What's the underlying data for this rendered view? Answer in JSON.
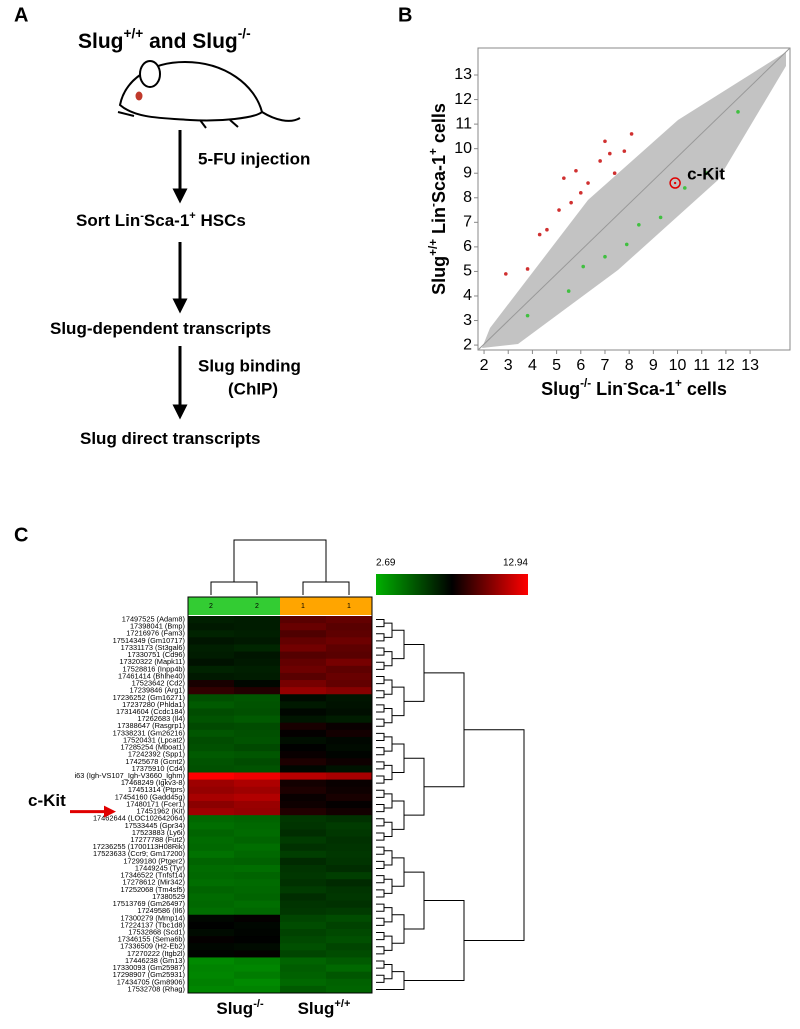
{
  "panels": {
    "a": "A",
    "b": "B",
    "c": "C"
  },
  "flow": {
    "title": [
      "Slug",
      "+/+",
      " and Slug",
      "-/-"
    ],
    "arrows": [
      [
        "5-FU injection"
      ],
      [
        "Slug binding",
        "(ChIP)"
      ]
    ],
    "steps": [
      [
        "Sort Lin",
        "-",
        "Sca-1",
        "+",
        " HSCs"
      ],
      [
        "Slug-dependent transcripts"
      ],
      [
        "Slug direct transcripts"
      ]
    ]
  },
  "chart_data": [
    {
      "type": "scatter",
      "x_label": [
        "Slug",
        "-/-",
        " Lin",
        "-",
        "Sca-1",
        "+",
        " cells"
      ],
      "y_label": [
        "Slug",
        "+/+",
        " Lin",
        "-",
        "Sca-1",
        "+",
        " cells"
      ],
      "xlim": [
        1.75,
        14.65
      ],
      "ylim": [
        1.8,
        14.1
      ],
      "xticks": [
        2,
        3,
        4,
        5,
        6,
        7,
        8,
        9,
        10,
        11,
        12,
        13
      ],
      "yticks": [
        2,
        3,
        4,
        5,
        6,
        7,
        8,
        9,
        10,
        11,
        12,
        13
      ],
      "cloud_color": "#b8b8b8",
      "series": [
        {
          "color": "#d03030",
          "x": [
            2.9,
            3.8,
            4.3,
            4.6,
            5.1,
            5.3,
            5.6,
            5.8,
            6.0,
            6.3,
            6.8,
            7.0,
            7.2,
            7.4,
            7.8,
            8.1
          ],
          "values": [
            4.9,
            5.1,
            6.5,
            6.7,
            7.5,
            8.8,
            7.8,
            9.1,
            8.2,
            8.6,
            9.5,
            10.3,
            9.8,
            9.0,
            9.9,
            10.6
          ]
        },
        {
          "color": "#40c040",
          "x": [
            3.8,
            5.5,
            6.1,
            7.0,
            7.9,
            8.4,
            9.3,
            10.3,
            11.2,
            12.5
          ],
          "values": [
            3.2,
            4.2,
            5.2,
            5.6,
            6.1,
            6.9,
            7.2,
            8.4,
            9.0,
            11.5
          ]
        }
      ],
      "highlight": {
        "label": "c-Kit",
        "x": 9.9,
        "y": 8.6,
        "color": "#e00000"
      }
    },
    {
      "type": "heatmap",
      "categories": [
        "2",
        "2",
        "1",
        "1"
      ],
      "category_colors": [
        "#33cc33",
        "#33cc33",
        "#ffa500",
        "#ffa500"
      ],
      "group_labels": [
        [
          "Slug",
          "-/-"
        ],
        [
          "Slug",
          "+/+"
        ]
      ],
      "vlim": [
        2.69,
        12.94
      ],
      "vticks": [
        2.69,
        12.94
      ],
      "colorscale": [
        "#00b000",
        "#000000",
        "#ff0000"
      ],
      "annotation": {
        "label": "c-Kit",
        "row": 27,
        "color": "#e00000"
      },
      "rows": [
        "17497525 (Adam8)",
        "17398041 (Bmp)",
        "17216976 (Fam3)",
        "17514349 (Gm10717)",
        "17331173 (St3gal6)",
        "17330751 (Cd96)",
        "17320322 (Mapk11)",
        "17528816 (Inpp4b)",
        "17461414 (Bhlhe40)",
        "17523642 (Cd2)",
        "17239846 (Arg1)",
        "17236252 (Gm16271)",
        "17237280 (Phlda1)",
        "17314604 (Ccdc184)",
        "17262683 (Il4)",
        "17388647 (Rasgrp1)",
        "17338231 (Gm26216)",
        "17520431 (Lpcat2)",
        "17285254 (Mboat1)",
        "17242392 (Spp1)",
        "17425678 (Gcnt2)",
        "17375910 (Cd4)",
        "i63 (Igh-VS107_Igh-V3660_Ighm)",
        "17468249 (Igkv3-8)",
        "17451314 (Ptprs)",
        "17454160 (Gadd45g)",
        "17480171 (Fcer1)",
        "17451962 (Kit)",
        "17462644 (LOC102642064)",
        "17533445 (Gpr34)",
        "17523883 (Ly6i)",
        "17277788 (Fut2)",
        "17236255 (1700113H08Rik)",
        "17523633 (Ccr9; Gm17200)",
        "17299180 (Ptger2)",
        "17449245 (Tyr)",
        "17346522 (Tnfsf14)",
        "17278612 (Mir342)",
        "17252068 (Tm4sf5)",
        "17380529",
        "17513769 (Gm26497)",
        "17249586 (Il6)",
        "17300279 (Mmp14)",
        "17224137 (Tbc1d8)",
        "17532868 (Scd1)",
        "17346155 (Sema6b)",
        "17336509 (H2-Eb2)",
        "17270222 (Itgb2l)",
        "17446238 (Gm13)",
        "17330093 (Gm25987)",
        "17298907 (Gm25931)",
        "17434705 (Gm8906)",
        "17532708 (Rhag)"
      ],
      "values": [
        [
          6.9,
          7.0,
          9.6,
          9.8
        ],
        [
          7.1,
          7.0,
          9.9,
          9.6
        ],
        [
          6.8,
          6.9,
          9.4,
          9.7
        ],
        [
          7.2,
          7.1,
          9.8,
          10.0
        ],
        [
          6.9,
          6.7,
          10.1,
          9.7
        ],
        [
          7.0,
          7.2,
          9.5,
          9.6
        ],
        [
          7.3,
          7.1,
          9.8,
          10.2
        ],
        [
          6.8,
          6.9,
          10.0,
          9.7
        ],
        [
          7.1,
          7.0,
          9.6,
          9.9
        ],
        [
          8.3,
          7.6,
          10.2,
          9.8
        ],
        [
          8.8,
          8.5,
          10.8,
          10.5
        ],
        [
          5.5,
          5.3,
          7.5,
          7.2
        ],
        [
          5.2,
          5.4,
          7.1,
          7.3
        ],
        [
          5.6,
          5.5,
          7.6,
          7.4
        ],
        [
          5.4,
          5.2,
          7.2,
          7.0
        ],
        [
          5.7,
          5.6,
          8.3,
          8.0
        ],
        [
          5.3,
          5.5,
          7.9,
          8.2
        ],
        [
          5.6,
          5.4,
          7.4,
          7.6
        ],
        [
          5.5,
          5.7,
          7.8,
          7.5
        ],
        [
          5.2,
          5.3,
          8.0,
          7.7
        ],
        [
          5.4,
          5.6,
          8.4,
          8.1
        ],
        [
          5.5,
          5.4,
          7.6,
          7.3
        ],
        [
          12.9,
          12.6,
          11.5,
          11.2
        ],
        [
          11.0,
          11.3,
          8.2,
          8.0
        ],
        [
          10.8,
          11.0,
          8.4,
          8.1
        ],
        [
          11.2,
          11.4,
          8.0,
          8.3
        ],
        [
          10.6,
          10.9,
          8.1,
          7.9
        ],
        [
          11.0,
          10.8,
          8.5,
          8.2
        ],
        [
          4.8,
          4.9,
          6.2,
          6.4
        ],
        [
          4.6,
          4.8,
          6.3,
          6.1
        ],
        [
          4.9,
          4.7,
          6.5,
          6.2
        ],
        [
          4.7,
          4.9,
          6.1,
          6.4
        ],
        [
          4.8,
          4.6,
          6.4,
          6.3
        ],
        [
          4.5,
          4.8,
          6.0,
          6.2
        ],
        [
          4.9,
          5.0,
          6.6,
          6.3
        ],
        [
          4.7,
          4.6,
          6.3,
          6.5
        ],
        [
          4.8,
          4.9,
          6.2,
          6.0
        ],
        [
          4.6,
          4.7,
          6.4,
          6.6
        ],
        [
          4.9,
          4.8,
          6.1,
          6.3
        ],
        [
          4.7,
          4.9,
          6.5,
          6.2
        ],
        [
          4.8,
          4.6,
          6.3,
          6.4
        ],
        [
          4.6,
          4.8,
          6.2,
          6.1
        ],
        [
          7.6,
          7.9,
          5.8,
          5.6
        ],
        [
          7.8,
          7.6,
          5.6,
          5.9
        ],
        [
          7.5,
          7.7,
          5.9,
          5.7
        ],
        [
          7.9,
          7.8,
          5.7,
          5.5
        ],
        [
          7.6,
          7.5,
          5.5,
          5.8
        ],
        [
          7.7,
          7.9,
          5.8,
          5.6
        ],
        [
          3.8,
          4.1,
          4.9,
          5.2
        ],
        [
          4.0,
          3.9,
          5.1,
          4.8
        ],
        [
          3.9,
          4.2,
          5.0,
          5.3
        ],
        [
          4.1,
          3.8,
          4.8,
          5.0
        ],
        [
          3.9,
          4.0,
          5.2,
          4.9
        ]
      ]
    }
  ]
}
